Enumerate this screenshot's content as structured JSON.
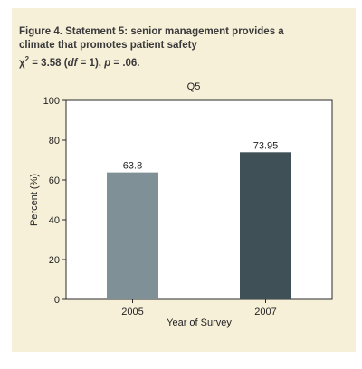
{
  "caption": {
    "line1": "Figure 4. Statement 5: senior management provides a",
    "line2": "climate that promotes patient safety",
    "chi_symbol": "χ",
    "chi_sup": "2",
    "line3_rest": " = 3.58 (",
    "df_italic": "df",
    "line3_mid": " = 1), ",
    "p_italic": "p",
    "line3_end": " = .06."
  },
  "chart_data": {
    "type": "bar",
    "title": "Q5",
    "categories": [
      "2005",
      "2007"
    ],
    "values": [
      63.8,
      73.95
    ],
    "value_labels": [
      "63.8",
      "73.95"
    ],
    "bar_colors": [
      "#7f9196",
      "#3f5157"
    ],
    "xlabel": "Year of Survey",
    "ylabel": "Percent (%)",
    "ylim": [
      0,
      100
    ],
    "yticks": [
      0,
      20,
      40,
      60,
      80,
      100
    ],
    "grid": false,
    "legend": "none"
  },
  "colors": {
    "panel_background": "#f7f0d9",
    "plot_background": "#ffffff"
  }
}
